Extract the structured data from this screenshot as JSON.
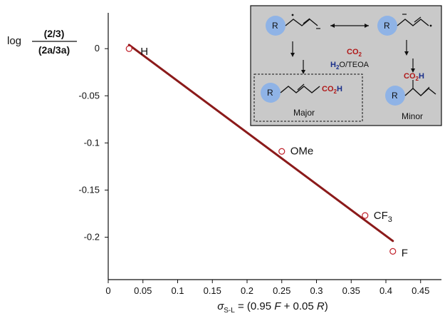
{
  "chart_data": {
    "type": "scatter",
    "points": [
      {
        "x": 0.03,
        "y": 0.0,
        "label": "H"
      },
      {
        "x": 0.25,
        "y": -0.109,
        "label": "OMe"
      },
      {
        "x": 0.37,
        "y": -0.177,
        "label": "CF",
        "label_sub": "3"
      },
      {
        "x": 0.41,
        "y": -0.215,
        "label": "F"
      }
    ],
    "fit_line": {
      "x": [
        0.03,
        0.41
      ],
      "y": [
        0.004,
        -0.204
      ]
    },
    "xlim": [
      0,
      0.48
    ],
    "ylim": [
      -0.245,
      0.038
    ],
    "xticks": [
      "0",
      "0.05",
      "0.1",
      "0.15",
      "0.2",
      "0.25",
      "0.3",
      "0.35",
      "0.4",
      "0.45"
    ],
    "xtick_values": [
      0,
      0.05,
      0.1,
      0.15,
      0.2,
      0.25,
      0.3,
      0.35,
      0.4,
      0.45
    ],
    "yticks": [
      "0",
      "-0.05",
      "-0.1",
      "-0.15",
      "-0.2"
    ],
    "ytick_values": [
      0,
      -0.05,
      -0.1,
      -0.15,
      -0.2
    ],
    "xlabel": {
      "sigma": "σ",
      "sub": "S-L",
      "eq": " = (0.95 ",
      "F": "F",
      "mid": " + 0.05 ",
      "R": "R",
      "end": ")"
    },
    "ylabel": {
      "log": "log",
      "numerator": "(2/3)",
      "denominator": "(2a/3a)"
    },
    "grid": false,
    "colors": {
      "line": "#8b1a1a",
      "marker": "#c0202a",
      "inset_bg": "#c9c9c9",
      "blob": "#8fb3e6",
      "co2": "#b01818",
      "h2o": "#1a2f8a"
    }
  },
  "inset": {
    "co2_label": "CO",
    "co2_sub": "2",
    "reagent_h": "H",
    "reagent_2": "2",
    "reagent_o": "O/TEOA",
    "r_label": "R",
    "major_label": "Major",
    "minor_label": "Minor",
    "product_group": "CO",
    "product_sub": "2",
    "product_h": "H"
  }
}
